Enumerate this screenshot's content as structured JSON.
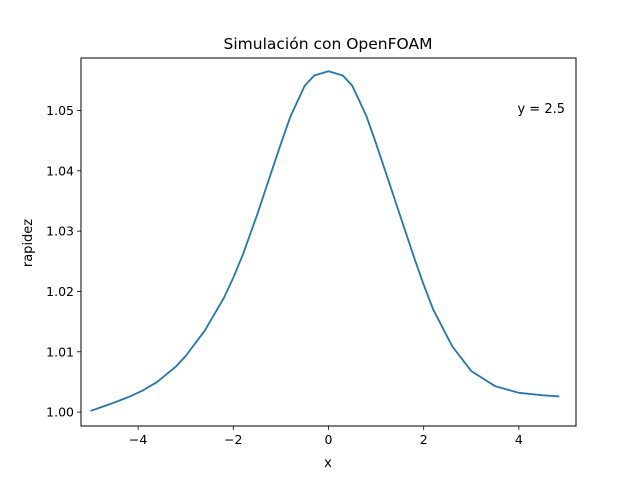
{
  "chart_data": {
    "type": "line",
    "title": "Simulación con OpenFOAM",
    "xlabel": "x",
    "ylabel": "rapidez",
    "xlim": [
      -5.2,
      5.2
    ],
    "ylim": [
      0.9977,
      1.0587
    ],
    "xticks": [
      -4,
      -2,
      0,
      2,
      4
    ],
    "xtick_labels": [
      "−4",
      "−2",
      "0",
      "2",
      "4"
    ],
    "yticks": [
      1.0,
      1.01,
      1.02,
      1.03,
      1.04,
      1.05
    ],
    "ytick_labels": [
      "1.00",
      "1.01",
      "1.02",
      "1.03",
      "1.04",
      "1.05"
    ],
    "grid": false,
    "annotation": "y = 2.5",
    "series": [
      {
        "color": "#1f77b4",
        "x": [
          -5.0,
          -4.6,
          -4.2,
          -3.9,
          -3.6,
          -3.2,
          -3.0,
          -2.6,
          -2.2,
          -2.0,
          -1.8,
          -1.5,
          -1.2,
          -1.0,
          -0.8,
          -0.5,
          -0.3,
          0.0,
          0.3,
          0.5,
          0.8,
          1.0,
          1.2,
          1.5,
          1.8,
          2.0,
          2.2,
          2.6,
          3.0,
          3.5,
          4.0,
          4.5,
          4.85
        ],
        "y": [
          1.0002,
          1.0013,
          1.0025,
          1.0036,
          1.005,
          1.0076,
          1.0093,
          1.0135,
          1.0189,
          1.0223,
          1.0261,
          1.0327,
          1.0398,
          1.0445,
          1.049,
          1.0541,
          1.0558,
          1.0565,
          1.0558,
          1.0541,
          1.049,
          1.0445,
          1.0398,
          1.0327,
          1.0256,
          1.0211,
          1.017,
          1.0109,
          1.0068,
          1.0043,
          1.0032,
          1.0028,
          1.0026
        ]
      }
    ]
  }
}
